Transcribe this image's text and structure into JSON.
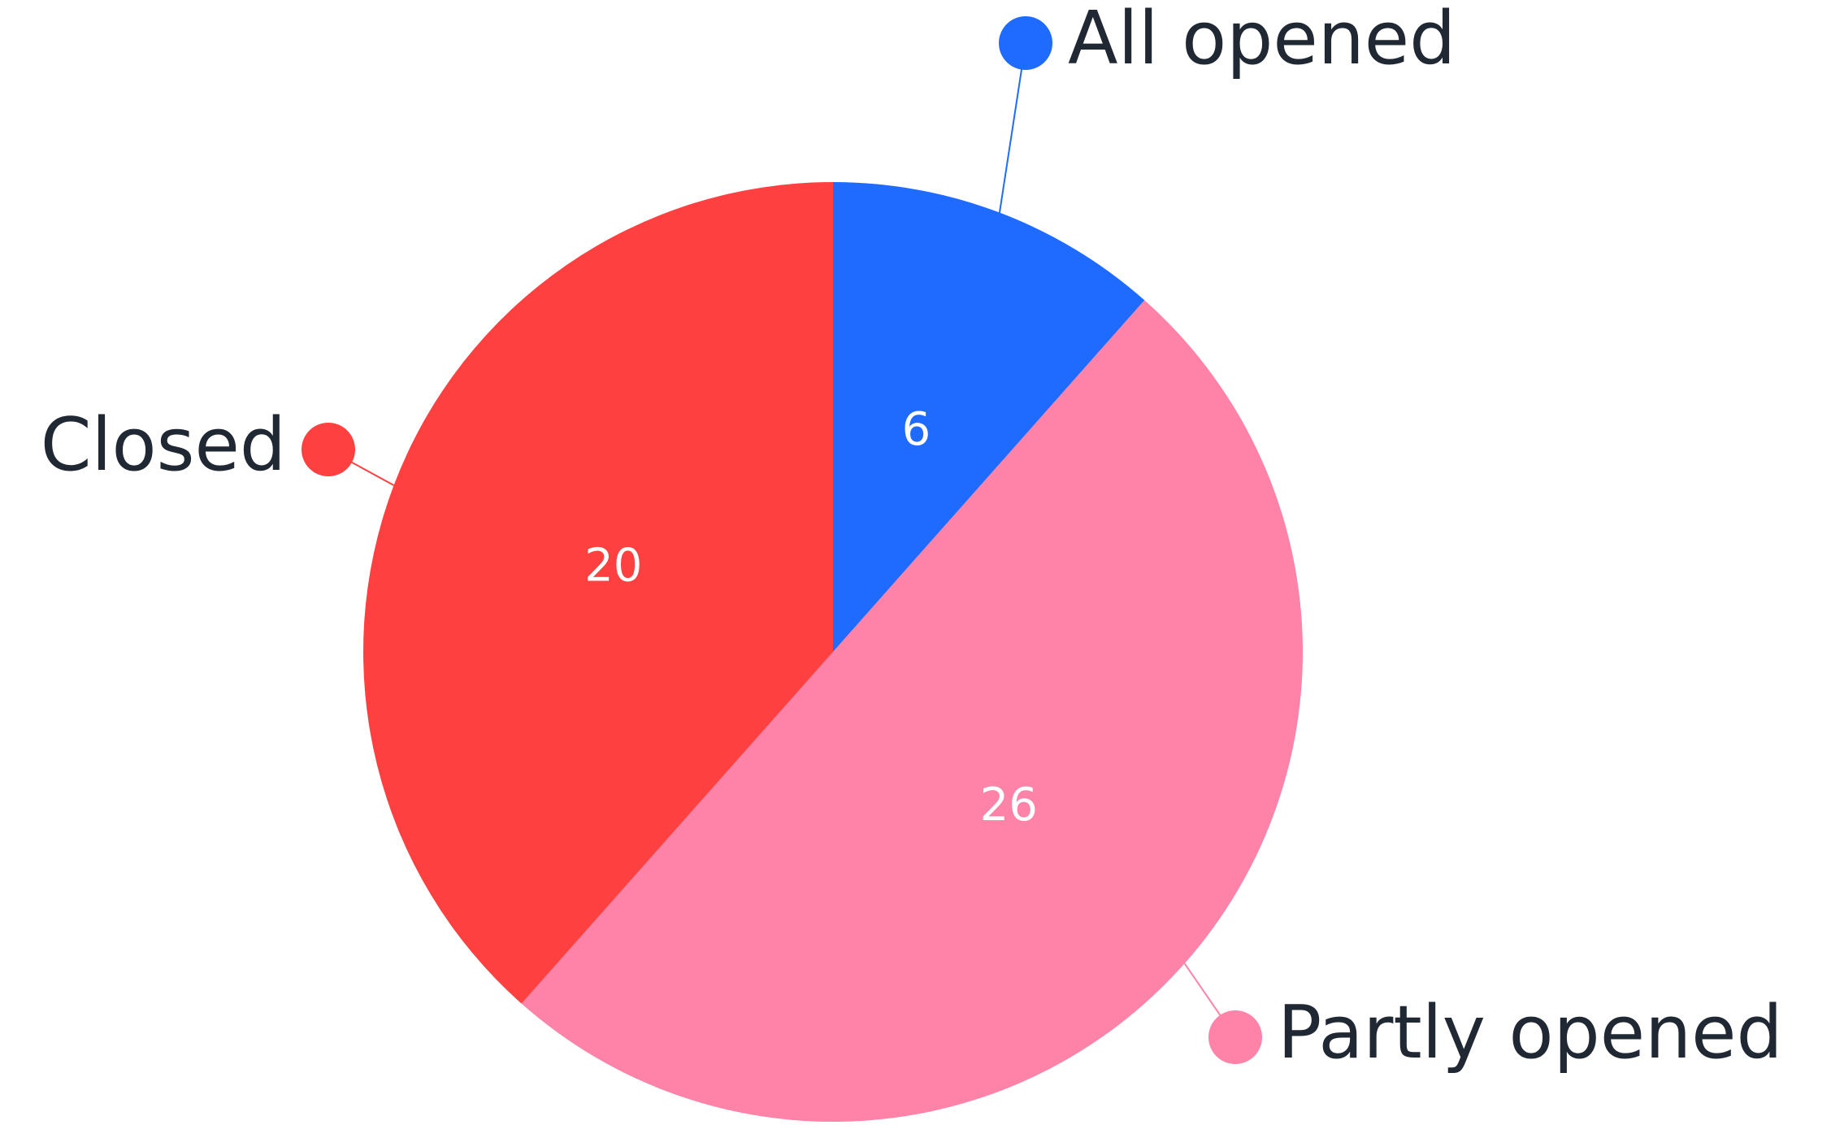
{
  "chart_data": {
    "type": "pie",
    "categories": [
      "All opened",
      "Partly opened",
      "Closed"
    ],
    "values": [
      6,
      26,
      20
    ],
    "colors": [
      "#1f6bff",
      "#ff82a9",
      "#ff4040"
    ]
  }
}
